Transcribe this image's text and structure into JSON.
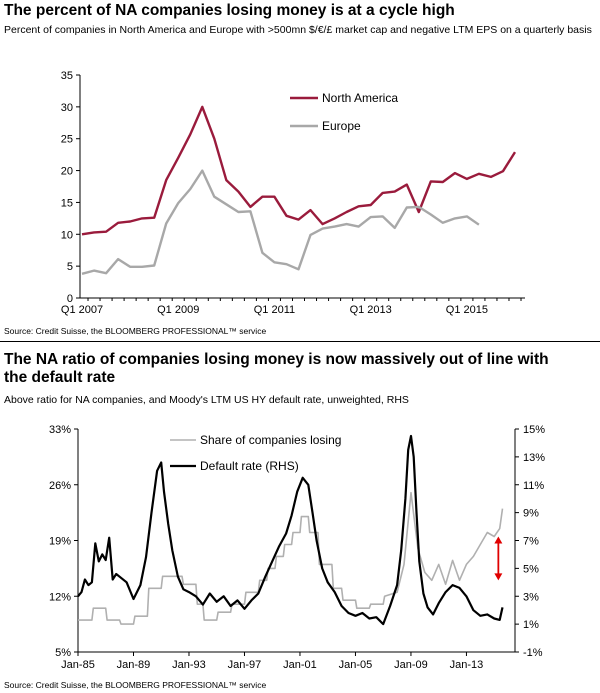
{
  "chart_data": [
    {
      "type": "line",
      "title": "The percent of NA companies losing money is at a cycle high",
      "subtitle": "Percent of companies in North America and Europe with >500mn $/€/£ market cap and negative LTM EPS on a quarterly basis",
      "source": "Source: Credit Suisse, the BLOOMBERG PROFESSIONAL™ service",
      "ylim": [
        0,
        35
      ],
      "yticks": [
        "0",
        "5",
        "10",
        "15",
        "20",
        "25",
        "30",
        "35"
      ],
      "xticks": [
        "Q1 2007",
        "Q1 2009",
        "Q1 2011",
        "Q1 2013",
        "Q1 2015"
      ],
      "legend": [
        "North America",
        "Europe"
      ],
      "series": [
        {
          "name": "North America",
          "color": "#9a1b3c",
          "values": [
            10.0,
            10.3,
            10.4,
            11.8,
            12.0,
            12.5,
            12.6,
            18.5,
            22.0,
            25.7,
            30.0,
            25.0,
            18.5,
            16.7,
            14.3,
            15.9,
            15.9,
            12.9,
            12.3,
            13.8,
            11.6,
            12.5,
            13.5,
            14.4,
            14.6,
            16.5,
            16.7,
            17.8,
            13.5,
            18.3,
            18.2,
            19.6,
            18.7,
            19.5,
            19.0,
            19.9,
            22.9
          ]
        },
        {
          "name": "Europe",
          "color": "#a8a8a8",
          "values": [
            3.8,
            4.3,
            3.9,
            6.1,
            4.9,
            4.9,
            5.1,
            11.7,
            14.9,
            17.1,
            20.0,
            15.9,
            14.7,
            13.5,
            13.6,
            7.1,
            5.6,
            5.3,
            4.5,
            9.9,
            10.9,
            11.2,
            11.6,
            11.2,
            12.7,
            12.8,
            11.0,
            14.2,
            14.3,
            13.1,
            11.8,
            12.5,
            12.8,
            11.5
          ]
        }
      ]
    },
    {
      "type": "line",
      "title": "The NA ratio of companies losing money is now massively out of line with the default rate",
      "subtitle": "Above ratio for NA companies, and Moody's LTM US HY default rate, unweighted, RHS",
      "source": "Source: Credit Suisse, the BLOOMBERG PROFESSIONAL™ service",
      "ylim_left": [
        5,
        33
      ],
      "ylim_right": [
        -1,
        15
      ],
      "yticks_left": [
        "5%",
        "12%",
        "19%",
        "26%",
        "33%"
      ],
      "yticks_right": [
        "-1%",
        "1%",
        "3%",
        "5%",
        "7%",
        "9%",
        "11%",
        "13%",
        "15%"
      ],
      "xticks": [
        "Jan-85",
        "Jan-89",
        "Jan-93",
        "Jan-97",
        "Jan-01",
        "Jan-05",
        "Jan-09",
        "Jan-13"
      ],
      "legend": [
        "Share of companies losing",
        "Default rate (RHS)"
      ],
      "series": [
        {
          "name": "Share of companies losing",
          "axis": "left",
          "color": "#b0b0b0",
          "x": [
            1985,
            1986,
            1986.1,
            1987,
            1987.1,
            1988,
            1988.1,
            1989,
            1989.1,
            1990,
            1990.1,
            1991,
            1991.1,
            1992.5,
            1992.6,
            1993.5,
            1993.6,
            1994,
            1994.1,
            1995,
            1995.1,
            1996,
            1996.1,
            1997,
            1997.1,
            1998,
            1998.1,
            1998.6,
            1998.7,
            1999.2,
            1999.3,
            1999.8,
            1999.9,
            2000.4,
            2000.5,
            2001,
            2001.1,
            2001.6,
            2001.7,
            2002.3,
            2002.4,
            2003.3,
            2003.4,
            2004,
            2004.1,
            2005,
            2005.1,
            2006,
            2006.1,
            2007,
            2007.1,
            2008,
            2008.5,
            2009,
            2009.5,
            2010,
            2010.5,
            2011,
            2011.5,
            2012,
            2012.5,
            2013,
            2013.5,
            2014,
            2014.5,
            2015,
            2015.4,
            2015.6
          ],
          "values": [
            9.0,
            9.0,
            10.5,
            10.5,
            9.0,
            9.0,
            8.5,
            8.5,
            9.5,
            9.5,
            13.0,
            13.0,
            14.5,
            14.5,
            13.5,
            13.5,
            11.0,
            11.0,
            9.0,
            9.0,
            10.0,
            10.0,
            11.0,
            11.0,
            12.5,
            12.5,
            14.0,
            14.0,
            15.5,
            15.5,
            17.0,
            17.0,
            18.5,
            18.5,
            20.0,
            20.0,
            22.0,
            22.0,
            20.0,
            20.0,
            16.0,
            16.0,
            13.0,
            13.0,
            11.5,
            11.5,
            10.5,
            10.5,
            11.0,
            11.0,
            12.0,
            12.5,
            16.0,
            25.0,
            18.0,
            15.0,
            14.0,
            16.0,
            13.5,
            16.5,
            14.0,
            16.0,
            17.0,
            18.5,
            20.0,
            19.5,
            20.5,
            23.0
          ]
        },
        {
          "name": "Default rate (RHS)",
          "axis": "right",
          "color": "#000000",
          "x": [
            1985,
            1985.25,
            1985.5,
            1985.75,
            1986,
            1986.25,
            1986.5,
            1986.75,
            1987,
            1987.25,
            1987.5,
            1987.75,
            1988,
            1988.5,
            1989,
            1989.5,
            1989.9,
            1990.3,
            1990.7,
            1991,
            1991.2,
            1991.5,
            1991.8,
            1992.2,
            1992.6,
            1993,
            1993.5,
            1994,
            1994.5,
            1995,
            1995.5,
            1996,
            1996.5,
            1997,
            1997.5,
            1998,
            1998.5,
            1999,
            1999.5,
            2000,
            2000.4,
            2000.8,
            2001.2,
            2001.6,
            2001.9,
            2002.2,
            2002.6,
            2003,
            2003.5,
            2004,
            2004.5,
            2005,
            2005.5,
            2006,
            2006.5,
            2007,
            2007.5,
            2008,
            2008.3,
            2008.6,
            2008.8,
            2009,
            2009.2,
            2009.4,
            2009.6,
            2009.9,
            2010.2,
            2010.6,
            2011,
            2011.5,
            2012,
            2012.5,
            2013,
            2013.5,
            2014,
            2014.5,
            2015,
            2015.4,
            2015.6
          ],
          "values": [
            3.0,
            3.3,
            4.2,
            3.8,
            4.0,
            6.8,
            5.5,
            6.0,
            5.6,
            7.2,
            4.2,
            4.6,
            4.4,
            4.0,
            2.8,
            3.8,
            5.8,
            9.0,
            12.0,
            12.6,
            10.5,
            8.2,
            6.3,
            4.4,
            3.5,
            3.3,
            3.0,
            2.4,
            3.2,
            2.6,
            3.0,
            2.3,
            2.7,
            2.1,
            2.7,
            3.2,
            4.4,
            5.5,
            6.6,
            7.5,
            8.8,
            10.5,
            11.5,
            11.0,
            9.0,
            7.0,
            5.0,
            4.0,
            3.3,
            2.3,
            1.8,
            1.6,
            1.8,
            1.4,
            1.5,
            1.0,
            2.3,
            3.8,
            6.3,
            10.0,
            13.5,
            14.5,
            13.0,
            9.0,
            5.5,
            3.2,
            2.2,
            1.7,
            2.5,
            3.3,
            3.8,
            3.6,
            3.0,
            2.0,
            1.6,
            1.7,
            1.4,
            1.3,
            2.2
          ]
        }
      ],
      "annotation": {
        "type": "double-arrow",
        "color": "#e00000",
        "x": 2015.3,
        "y_range_left": [
          14.0,
          19.5
        ]
      }
    }
  ]
}
